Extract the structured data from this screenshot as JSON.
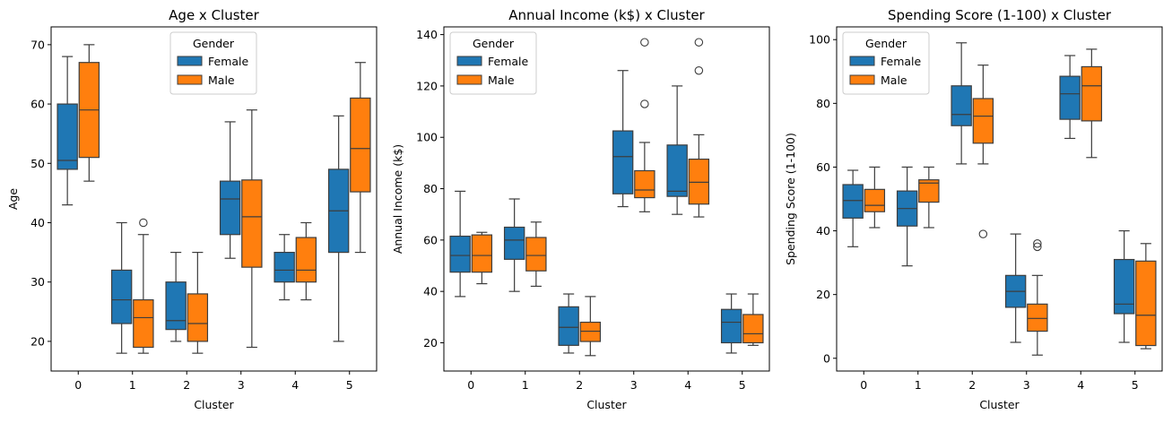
{
  "chart_data": [
    {
      "type": "box",
      "title": "Age x Cluster",
      "xlabel": "Cluster",
      "ylabel": "Age",
      "categories": [
        "0",
        "1",
        "2",
        "3",
        "4",
        "5"
      ],
      "ylim": [
        15,
        73
      ],
      "yticks": [
        20,
        30,
        40,
        50,
        60,
        70
      ],
      "legend": {
        "title": "Gender",
        "placement": "upper center"
      },
      "series": [
        {
          "name": "Female",
          "color": "#1f77b4",
          "boxes": [
            {
              "whislo": 43,
              "q1": 49,
              "med": 50.5,
              "q3": 60,
              "whishi": 68,
              "fliers": []
            },
            {
              "whislo": 18,
              "q1": 23,
              "med": 27,
              "q3": 32,
              "whishi": 40,
              "fliers": []
            },
            {
              "whislo": 20,
              "q1": 22,
              "med": 23.5,
              "q3": 30,
              "whishi": 35,
              "fliers": []
            },
            {
              "whislo": 34,
              "q1": 38,
              "med": 44,
              "q3": 47,
              "whishi": 57,
              "fliers": []
            },
            {
              "whislo": 27,
              "q1": 30,
              "med": 32,
              "q3": 35,
              "whishi": 38,
              "fliers": []
            },
            {
              "whislo": 20,
              "q1": 35,
              "med": 42,
              "q3": 49,
              "whishi": 58,
              "fliers": []
            }
          ]
        },
        {
          "name": "Male",
          "color": "#ff7f0e",
          "boxes": [
            {
              "whislo": 47,
              "q1": 51,
              "med": 59,
              "q3": 67,
              "whishi": 70,
              "fliers": []
            },
            {
              "whislo": 18,
              "q1": 19,
              "med": 24,
              "q3": 27,
              "whishi": 38,
              "fliers": [
                40
              ]
            },
            {
              "whislo": 18,
              "q1": 20,
              "med": 23,
              "q3": 28,
              "whishi": 35,
              "fliers": []
            },
            {
              "whislo": 19,
              "q1": 32.5,
              "med": 41,
              "q3": 47.2,
              "whishi": 59,
              "fliers": []
            },
            {
              "whislo": 27,
              "q1": 30,
              "med": 32,
              "q3": 37.5,
              "whishi": 40,
              "fliers": []
            },
            {
              "whislo": 35,
              "q1": 45.2,
              "med": 52.5,
              "q3": 61,
              "whishi": 67,
              "fliers": []
            }
          ]
        }
      ]
    },
    {
      "type": "box",
      "title": "Annual Income (k$) x Cluster",
      "xlabel": "Cluster",
      "ylabel": "Annual Income (k$)",
      "categories": [
        "0",
        "1",
        "2",
        "3",
        "4",
        "5"
      ],
      "ylim": [
        9,
        143
      ],
      "yticks": [
        20,
        40,
        60,
        80,
        100,
        120,
        140
      ],
      "legend": {
        "title": "Gender",
        "placement": "upper left"
      },
      "series": [
        {
          "name": "Female",
          "color": "#1f77b4",
          "boxes": [
            {
              "whislo": 38,
              "q1": 47.5,
              "med": 54,
              "q3": 61.5,
              "whishi": 79,
              "fliers": []
            },
            {
              "whislo": 40,
              "q1": 52.5,
              "med": 60,
              "q3": 65,
              "whishi": 76,
              "fliers": []
            },
            {
              "whislo": 16,
              "q1": 19,
              "med": 26,
              "q3": 34,
              "whishi": 39,
              "fliers": []
            },
            {
              "whislo": 73,
              "q1": 78,
              "med": 92.5,
              "q3": 102.5,
              "whishi": 126,
              "fliers": []
            },
            {
              "whislo": 70,
              "q1": 77,
              "med": 79,
              "q3": 97,
              "whishi": 120,
              "fliers": []
            },
            {
              "whislo": 16,
              "q1": 20,
              "med": 28,
              "q3": 33,
              "whishi": 39,
              "fliers": []
            }
          ]
        },
        {
          "name": "Male",
          "color": "#ff7f0e",
          "boxes": [
            {
              "whislo": 43,
              "q1": 47.5,
              "med": 54,
              "q3": 62,
              "whishi": 63,
              "fliers": []
            },
            {
              "whislo": 42,
              "q1": 48,
              "med": 54,
              "q3": 61,
              "whishi": 67,
              "fliers": []
            },
            {
              "whislo": 15,
              "q1": 20.5,
              "med": 24.5,
              "q3": 28,
              "whishi": 38,
              "fliers": []
            },
            {
              "whislo": 71,
              "q1": 76.5,
              "med": 79.5,
              "q3": 87,
              "whishi": 98,
              "fliers": [
                113,
                137
              ]
            },
            {
              "whislo": 69,
              "q1": 74,
              "med": 82.5,
              "q3": 91.5,
              "whishi": 101,
              "fliers": [
                126,
                137
              ]
            },
            {
              "whislo": 19,
              "q1": 20,
              "med": 23.5,
              "q3": 31,
              "whishi": 39,
              "fliers": []
            }
          ]
        }
      ]
    },
    {
      "type": "box",
      "title": "Spending Score (1-100) x Cluster",
      "xlabel": "Cluster",
      "ylabel": "Spending Score (1-100)",
      "categories": [
        "0",
        "1",
        "2",
        "3",
        "4",
        "5"
      ],
      "ylim": [
        -4,
        104
      ],
      "yticks": [
        0,
        20,
        40,
        60,
        80,
        100
      ],
      "legend": {
        "title": "Gender",
        "placement": "upper left"
      },
      "series": [
        {
          "name": "Female",
          "color": "#1f77b4",
          "boxes": [
            {
              "whislo": 35,
              "q1": 44,
              "med": 49.5,
              "q3": 54.5,
              "whishi": 59,
              "fliers": []
            },
            {
              "whislo": 29,
              "q1": 41.5,
              "med": 47,
              "q3": 52.5,
              "whishi": 60,
              "fliers": []
            },
            {
              "whislo": 61,
              "q1": 73,
              "med": 76.5,
              "q3": 85.5,
              "whishi": 99,
              "fliers": []
            },
            {
              "whislo": 5,
              "q1": 16,
              "med": 21,
              "q3": 26,
              "whishi": 39,
              "fliers": []
            },
            {
              "whislo": 69,
              "q1": 75,
              "med": 83,
              "q3": 88.5,
              "whishi": 95,
              "fliers": []
            },
            {
              "whislo": 5,
              "q1": 14,
              "med": 17,
              "q3": 31,
              "whishi": 40,
              "fliers": []
            }
          ]
        },
        {
          "name": "Male",
          "color": "#ff7f0e",
          "boxes": [
            {
              "whislo": 41,
              "q1": 46,
              "med": 48,
              "q3": 53,
              "whishi": 60,
              "fliers": []
            },
            {
              "whislo": 41,
              "q1": 49,
              "med": 55,
              "q3": 56,
              "whishi": 60,
              "fliers": []
            },
            {
              "whislo": 61,
              "q1": 67.5,
              "med": 76,
              "q3": 81.5,
              "whishi": 92,
              "fliers": [
                39
              ]
            },
            {
              "whislo": 1,
              "q1": 8.5,
              "med": 12.5,
              "q3": 17,
              "whishi": 26,
              "fliers": [
                35,
                36
              ]
            },
            {
              "whislo": 63,
              "q1": 74.5,
              "med": 85.5,
              "q3": 91.5,
              "whishi": 97,
              "fliers": []
            },
            {
              "whislo": 3,
              "q1": 4,
              "med": 13.5,
              "q3": 30.5,
              "whishi": 36,
              "fliers": []
            }
          ]
        }
      ]
    }
  ]
}
